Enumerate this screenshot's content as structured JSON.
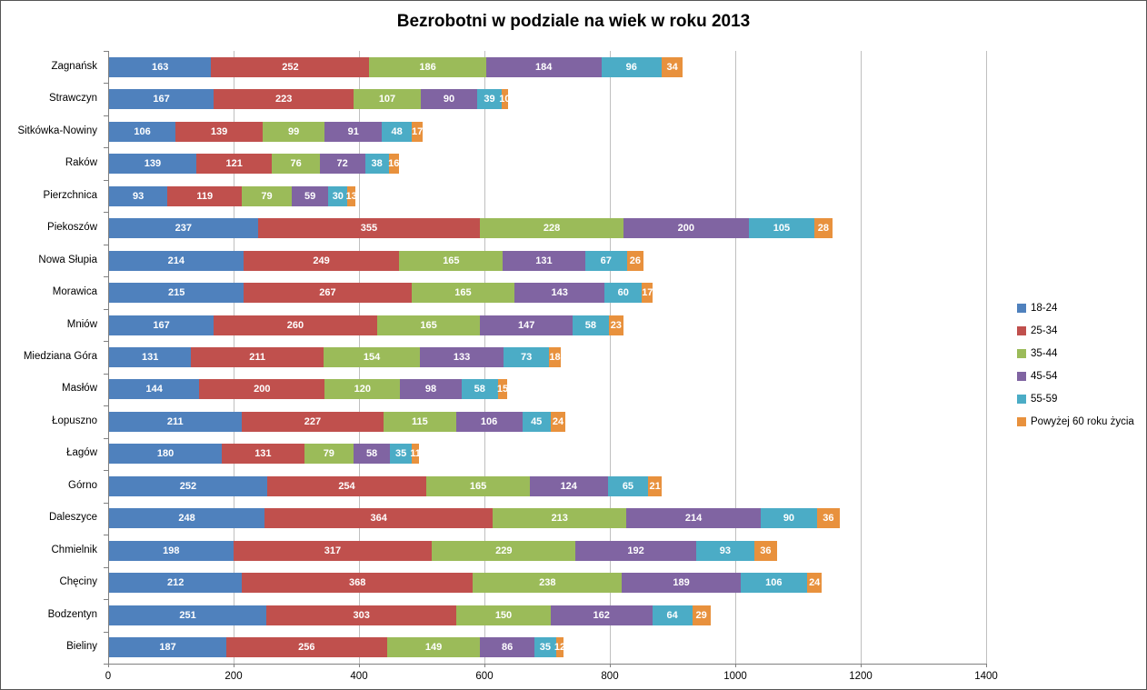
{
  "title": "Bezrobotni w podziale na wiek w roku 2013",
  "chart_data": {
    "type": "bar",
    "orientation": "horizontal",
    "stacked": true,
    "title": "Bezrobotni w podziale na wiek w roku 2013",
    "categories": [
      "Zagnańsk",
      "Strawczyn",
      "Sitkówka-Nowiny",
      "Raków",
      "Pierzchnica",
      "Piekoszów",
      "Nowa Słupia",
      "Morawica",
      "Mniów",
      "Miedziana Góra",
      "Masłów",
      "Łopuszno",
      "Łagów",
      "Górno",
      "Daleszyce",
      "Chmielnik",
      "Chęciny",
      "Bodzentyn",
      "Bieliny"
    ],
    "series": [
      {
        "name": "18-24",
        "color": "#4f81bd",
        "values": [
          163,
          167,
          106,
          139,
          93,
          237,
          214,
          215,
          167,
          131,
          144,
          211,
          180,
          252,
          248,
          198,
          212,
          251,
          187
        ]
      },
      {
        "name": "25-34",
        "color": "#c0504d",
        "values": [
          252,
          223,
          139,
          121,
          119,
          355,
          249,
          267,
          260,
          211,
          200,
          227,
          131,
          254,
          364,
          317,
          368,
          303,
          256
        ]
      },
      {
        "name": "35-44",
        "color": "#9bbb59",
        "values": [
          186,
          107,
          99,
          76,
          79,
          228,
          165,
          165,
          165,
          154,
          120,
          115,
          79,
          165,
          213,
          229,
          238,
          150,
          149
        ]
      },
      {
        "name": "45-54",
        "color": "#8064a2",
        "values": [
          184,
          90,
          91,
          72,
          59,
          200,
          131,
          143,
          147,
          133,
          98,
          106,
          58,
          124,
          214,
          192,
          189,
          162,
          86
        ]
      },
      {
        "name": "55-59",
        "color": "#4bacc6",
        "values": [
          96,
          39,
          48,
          38,
          30,
          105,
          67,
          60,
          58,
          73,
          58,
          45,
          35,
          65,
          90,
          93,
          106,
          64,
          35
        ]
      },
      {
        "name": "Powyżej 60 roku życia",
        "color": "#e8913d",
        "values": [
          34,
          10,
          17,
          16,
          13,
          28,
          26,
          17,
          23,
          18,
          15,
          24,
          11,
          21,
          36,
          36,
          24,
          29,
          12
        ]
      }
    ],
    "xlim": [
      0,
      1400
    ],
    "x_ticks": [
      0,
      200,
      400,
      600,
      800,
      1000,
      1200,
      1400
    ],
    "grid": true,
    "legend_position": "right",
    "data_labels": true,
    "data_label_color": "#ffffff",
    "gridline_color": "#bfbfbf",
    "axis_color": "#808080"
  }
}
